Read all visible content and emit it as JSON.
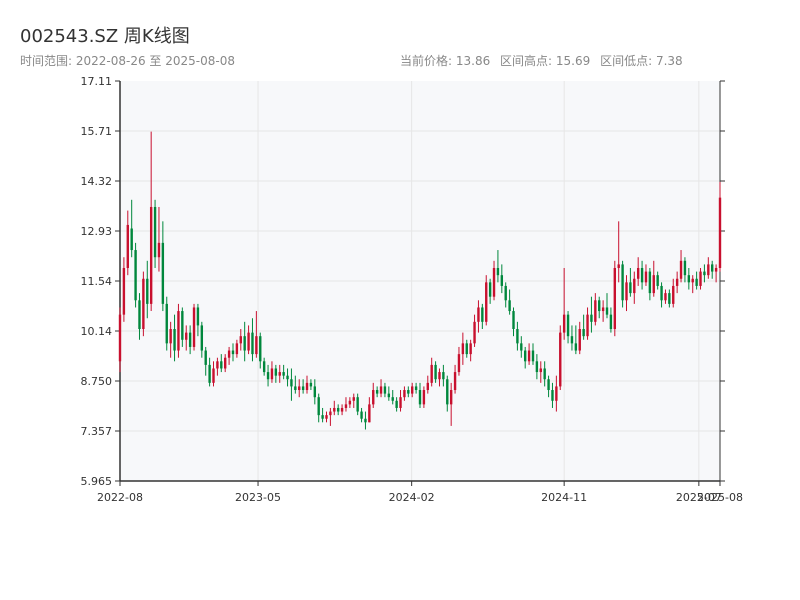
{
  "header": {
    "title": "002543.SZ 周K线图",
    "range_label": "时间范围: 2022-08-26 至 2025-08-08",
    "current_label": "当前价格: 13.86",
    "high_label": "区间高点: 15.69",
    "low_label": "区间低点: 7.38"
  },
  "colors": {
    "up": "#c8102e",
    "down": "#00873c",
    "plot_bg": "#f7f8fa",
    "grid": "#e6e6e6",
    "axis": "#333333"
  },
  "chart_data": {
    "type": "candlestick",
    "title": "002543.SZ 周K线图",
    "x_range": [
      "2022-08-26",
      "2025-08-08"
    ],
    "ylim": [
      5.965,
      17.11
    ],
    "y_ticks": [
      "5.965",
      "7.357",
      "8.750",
      "10.14",
      "11.54",
      "12.93",
      "14.32",
      "15.71",
      "17.11"
    ],
    "x_ticks": [
      {
        "label": "2022-08",
        "date": "2022-08-26"
      },
      {
        "label": "2023-05",
        "date": "2023-05-01"
      },
      {
        "label": "2024-02",
        "date": "2024-02-01"
      },
      {
        "label": "2024-11",
        "date": "2024-11-01"
      },
      {
        "label": "2025-07",
        "date": "2025-07-01"
      },
      {
        "label": "2025-08",
        "date": "2025-08-08"
      }
    ],
    "series": [
      {
        "type": "candlestick",
        "start_date": "2022-08-26",
        "step_days": 7,
        "ohlc": [
          [
            9.3,
            10.8,
            9.0,
            10.6
          ],
          [
            10.6,
            12.2,
            10.4,
            11.9
          ],
          [
            11.9,
            13.5,
            11.7,
            13.1
          ],
          [
            13.0,
            13.8,
            12.2,
            12.4
          ],
          [
            12.4,
            12.6,
            10.8,
            11.0
          ],
          [
            11.0,
            11.2,
            9.9,
            10.2
          ],
          [
            10.2,
            11.8,
            10.0,
            11.6
          ],
          [
            11.6,
            12.1,
            10.5,
            10.9
          ],
          [
            10.9,
            15.7,
            10.7,
            13.6
          ],
          [
            13.6,
            13.8,
            11.9,
            12.2
          ],
          [
            12.2,
            13.6,
            11.8,
            12.6
          ],
          [
            12.6,
            13.2,
            10.7,
            10.9
          ],
          [
            10.9,
            11.1,
            9.6,
            9.8
          ],
          [
            9.8,
            10.4,
            9.4,
            10.2
          ],
          [
            10.2,
            10.6,
            9.3,
            9.6
          ],
          [
            9.6,
            10.9,
            9.4,
            10.7
          ],
          [
            10.7,
            10.8,
            9.7,
            9.9
          ],
          [
            9.9,
            10.3,
            9.6,
            10.1
          ],
          [
            10.1,
            10.3,
            9.5,
            9.7
          ],
          [
            9.7,
            10.9,
            9.6,
            10.8
          ],
          [
            10.8,
            10.9,
            10.0,
            10.3
          ],
          [
            10.3,
            10.4,
            9.4,
            9.6
          ],
          [
            9.6,
            9.7,
            8.9,
            9.2
          ],
          [
            9.2,
            9.4,
            8.6,
            8.7
          ],
          [
            8.7,
            9.3,
            8.6,
            9.1
          ],
          [
            9.1,
            9.4,
            8.9,
            9.3
          ],
          [
            9.3,
            9.5,
            9.0,
            9.1
          ],
          [
            9.1,
            9.5,
            9.0,
            9.4
          ],
          [
            9.4,
            9.7,
            9.2,
            9.6
          ],
          [
            9.6,
            9.8,
            9.3,
            9.5
          ],
          [
            9.5,
            9.9,
            9.4,
            9.8
          ],
          [
            9.8,
            10.2,
            9.6,
            10.0
          ],
          [
            10.0,
            10.4,
            9.3,
            9.6
          ],
          [
            9.6,
            10.3,
            9.5,
            10.1
          ],
          [
            10.1,
            10.5,
            9.3,
            9.5
          ],
          [
            9.5,
            10.7,
            9.4,
            10.0
          ],
          [
            10.0,
            10.1,
            9.1,
            9.3
          ],
          [
            9.3,
            9.4,
            8.9,
            9.0
          ],
          [
            9.0,
            9.2,
            8.6,
            8.8
          ],
          [
            8.8,
            9.3,
            8.7,
            9.1
          ],
          [
            9.1,
            9.2,
            8.7,
            8.9
          ],
          [
            8.9,
            9.2,
            8.7,
            9.0
          ],
          [
            9.0,
            9.2,
            8.8,
            8.9
          ],
          [
            8.9,
            9.1,
            8.6,
            8.8
          ],
          [
            8.8,
            9.1,
            8.2,
            8.6
          ],
          [
            8.6,
            8.9,
            8.4,
            8.5
          ],
          [
            8.5,
            8.8,
            8.3,
            8.6
          ],
          [
            8.6,
            8.8,
            8.4,
            8.5
          ],
          [
            8.5,
            8.9,
            8.4,
            8.7
          ],
          [
            8.7,
            8.8,
            8.5,
            8.6
          ],
          [
            8.6,
            8.8,
            8.1,
            8.3
          ],
          [
            8.3,
            8.4,
            7.6,
            7.8
          ],
          [
            7.8,
            8.0,
            7.6,
            7.7
          ],
          [
            7.7,
            7.9,
            7.6,
            7.8
          ],
          [
            7.8,
            8.0,
            7.5,
            7.9
          ],
          [
            7.9,
            8.2,
            7.8,
            8.0
          ],
          [
            8.0,
            8.1,
            7.8,
            7.9
          ],
          [
            7.9,
            8.1,
            7.8,
            8.0
          ],
          [
            8.0,
            8.3,
            7.9,
            8.1
          ],
          [
            8.1,
            8.3,
            8.0,
            8.2
          ],
          [
            8.2,
            8.4,
            8.0,
            8.3
          ],
          [
            8.3,
            8.4,
            7.8,
            7.9
          ],
          [
            7.9,
            8.0,
            7.6,
            7.7
          ],
          [
            7.7,
            7.9,
            7.4,
            7.6
          ],
          [
            7.6,
            8.3,
            7.6,
            8.1
          ],
          [
            8.1,
            8.7,
            8.0,
            8.5
          ],
          [
            8.5,
            8.6,
            8.3,
            8.4
          ],
          [
            8.4,
            8.8,
            8.3,
            8.6
          ],
          [
            8.6,
            8.7,
            8.3,
            8.4
          ],
          [
            8.4,
            8.6,
            8.2,
            8.3
          ],
          [
            8.3,
            8.5,
            8.1,
            8.2
          ],
          [
            8.2,
            8.3,
            7.9,
            8.0
          ],
          [
            8.0,
            8.5,
            7.9,
            8.3
          ],
          [
            8.3,
            8.6,
            8.2,
            8.5
          ],
          [
            8.5,
            8.6,
            8.3,
            8.4
          ],
          [
            8.4,
            8.7,
            8.3,
            8.6
          ],
          [
            8.6,
            8.7,
            8.4,
            8.5
          ],
          [
            8.5,
            8.7,
            8.0,
            8.1
          ],
          [
            8.1,
            8.6,
            8.0,
            8.5
          ],
          [
            8.5,
            8.9,
            8.4,
            8.7
          ],
          [
            8.7,
            9.4,
            8.6,
            9.2
          ],
          [
            9.2,
            9.3,
            8.7,
            8.8
          ],
          [
            8.8,
            9.1,
            8.6,
            9.0
          ],
          [
            9.0,
            9.2,
            8.6,
            8.8
          ],
          [
            8.8,
            8.9,
            7.9,
            8.1
          ],
          [
            8.1,
            8.7,
            7.5,
            8.5
          ],
          [
            8.5,
            9.2,
            8.4,
            9.0
          ],
          [
            9.0,
            9.7,
            8.9,
            9.5
          ],
          [
            9.5,
            10.1,
            9.2,
            9.8
          ],
          [
            9.8,
            9.9,
            9.4,
            9.5
          ],
          [
            9.5,
            9.9,
            9.3,
            9.8
          ],
          [
            9.8,
            10.6,
            9.7,
            10.4
          ],
          [
            10.4,
            11.0,
            10.1,
            10.8
          ],
          [
            10.8,
            10.9,
            10.2,
            10.4
          ],
          [
            10.4,
            11.7,
            10.3,
            11.5
          ],
          [
            11.5,
            11.6,
            10.9,
            11.1
          ],
          [
            11.1,
            12.1,
            11.0,
            11.9
          ],
          [
            11.9,
            12.4,
            11.5,
            11.7
          ],
          [
            11.7,
            12.0,
            11.2,
            11.4
          ],
          [
            11.4,
            11.5,
            10.8,
            11.0
          ],
          [
            11.0,
            11.3,
            10.6,
            10.7
          ],
          [
            10.7,
            10.8,
            10.0,
            10.2
          ],
          [
            10.2,
            10.4,
            9.6,
            9.8
          ],
          [
            9.8,
            10.0,
            9.4,
            9.6
          ],
          [
            9.6,
            9.7,
            9.1,
            9.3
          ],
          [
            9.3,
            9.8,
            9.2,
            9.6
          ],
          [
            9.6,
            9.8,
            9.2,
            9.3
          ],
          [
            9.3,
            9.5,
            8.8,
            9.0
          ],
          [
            9.0,
            9.3,
            8.7,
            9.1
          ],
          [
            9.1,
            9.3,
            8.6,
            8.8
          ],
          [
            8.8,
            8.9,
            8.3,
            8.5
          ],
          [
            8.5,
            8.7,
            8.0,
            8.2
          ],
          [
            8.2,
            8.9,
            7.9,
            8.6
          ],
          [
            8.6,
            10.3,
            8.5,
            10.1
          ],
          [
            10.1,
            11.9,
            9.9,
            10.6
          ],
          [
            10.6,
            10.7,
            9.8,
            10.0
          ],
          [
            10.0,
            10.3,
            9.6,
            9.8
          ],
          [
            9.8,
            10.3,
            9.5,
            9.6
          ],
          [
            9.6,
            10.4,
            9.5,
            10.2
          ],
          [
            10.2,
            10.6,
            9.9,
            10.0
          ],
          [
            10.0,
            10.8,
            9.9,
            10.6
          ],
          [
            10.6,
            11.1,
            10.1,
            10.4
          ],
          [
            10.4,
            11.2,
            10.3,
            11.0
          ],
          [
            11.0,
            11.1,
            10.5,
            10.7
          ],
          [
            10.7,
            11.0,
            10.4,
            10.8
          ],
          [
            10.8,
            11.2,
            10.5,
            10.6
          ],
          [
            10.6,
            10.8,
            10.1,
            10.2
          ],
          [
            10.2,
            12.1,
            10.0,
            11.9
          ],
          [
            11.9,
            13.2,
            11.5,
            12.0
          ],
          [
            12.0,
            12.1,
            10.8,
            11.0
          ],
          [
            11.0,
            11.7,
            10.7,
            11.5
          ],
          [
            11.5,
            11.9,
            11.1,
            11.2
          ],
          [
            11.2,
            11.8,
            10.9,
            11.6
          ],
          [
            11.6,
            12.2,
            11.4,
            11.9
          ],
          [
            11.9,
            12.1,
            11.3,
            11.5
          ],
          [
            11.5,
            12.0,
            11.4,
            11.8
          ],
          [
            11.8,
            11.9,
            11.0,
            11.2
          ],
          [
            11.2,
            12.1,
            11.1,
            11.7
          ],
          [
            11.7,
            11.8,
            11.3,
            11.4
          ],
          [
            11.4,
            11.5,
            10.8,
            11.0
          ],
          [
            11.0,
            11.3,
            10.9,
            11.2
          ],
          [
            11.2,
            11.3,
            10.8,
            10.9
          ],
          [
            10.9,
            11.6,
            10.8,
            11.4
          ],
          [
            11.4,
            11.8,
            11.2,
            11.6
          ],
          [
            11.6,
            12.4,
            11.5,
            12.1
          ],
          [
            12.1,
            12.2,
            11.5,
            11.7
          ],
          [
            11.7,
            11.9,
            11.3,
            11.5
          ],
          [
            11.5,
            11.7,
            11.2,
            11.6
          ],
          [
            11.6,
            11.8,
            11.3,
            11.4
          ],
          [
            11.4,
            11.9,
            11.3,
            11.8
          ],
          [
            11.8,
            12.0,
            11.5,
            11.7
          ],
          [
            11.7,
            12.2,
            11.6,
            12.0
          ],
          [
            12.0,
            12.1,
            11.6,
            11.8
          ],
          [
            11.8,
            12.0,
            11.5,
            11.9
          ],
          [
            11.9,
            14.3,
            11.8,
            13.86
          ]
        ]
      }
    ]
  }
}
